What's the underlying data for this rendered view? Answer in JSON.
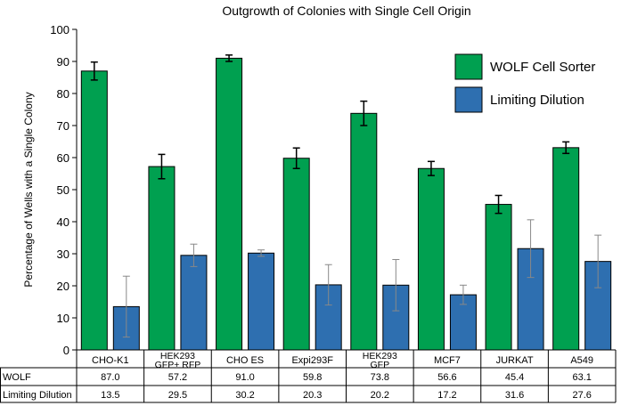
{
  "chart_data": {
    "type": "bar",
    "title": "Outgrowth of Colonies with Single Cell Origin",
    "ylabel": "Percentage of Wells with a Single Colony",
    "xlabel": "",
    "ylim": [
      0,
      100
    ],
    "yticks": [
      "0",
      "10",
      "20",
      "30",
      "40",
      "50",
      "60",
      "70",
      "80",
      "90",
      "100"
    ],
    "categories": [
      [
        "CHO-K1"
      ],
      [
        "HEK293",
        "GFP+ RFP"
      ],
      [
        "CHO ES"
      ],
      [
        "Expi293F"
      ],
      [
        "HEK293",
        "GFP"
      ],
      [
        "MCF7"
      ],
      [
        "JURKAT"
      ],
      [
        "A549"
      ]
    ],
    "series": [
      {
        "name": "WOLF Cell Sorter",
        "color": "#00a050",
        "values": [
          87.0,
          57.2,
          91.0,
          59.8,
          73.8,
          56.6,
          45.4,
          63.1
        ],
        "errors": [
          2.8,
          3.8,
          1.0,
          3.2,
          3.8,
          2.2,
          2.8,
          1.8
        ],
        "labels": [
          "87.0",
          "57.2",
          "91.0",
          "59.8",
          "73.8",
          "56.6",
          "45.4",
          "63.1"
        ]
      },
      {
        "name": "Limiting Dilution",
        "color": "#2e6fb0",
        "values": [
          13.5,
          29.5,
          30.2,
          20.3,
          20.2,
          17.2,
          31.6,
          27.6
        ],
        "errors": [
          9.5,
          3.5,
          1.0,
          6.3,
          8.0,
          3.0,
          9.0,
          8.2
        ],
        "labels": [
          "13.5",
          "29.5",
          "30.2",
          "20.3",
          "20.2",
          "17.2",
          "31.6",
          "27.6"
        ]
      }
    ],
    "table_row_labels": [
      "WOLF",
      "Limiting Dilution"
    ],
    "legend_position": "top-right"
  }
}
